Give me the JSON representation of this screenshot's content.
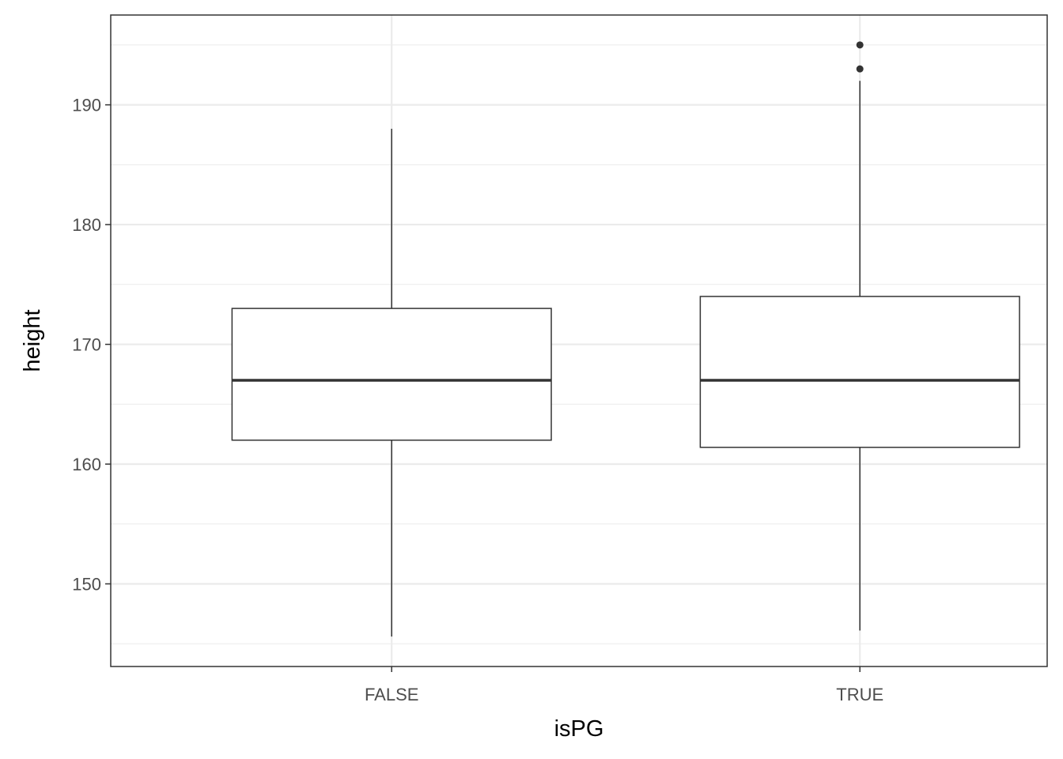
{
  "chart_data": {
    "type": "boxplot",
    "xlabel": "isPG",
    "ylabel": "height",
    "categories": [
      "FALSE",
      "TRUE"
    ],
    "ylim": [
      143.1,
      197.5
    ],
    "yticks": [
      150,
      160,
      170,
      180,
      190
    ],
    "grid": true,
    "boxes": [
      {
        "category": "FALSE",
        "lower_whisker": 145.6,
        "q1": 162,
        "median": 167,
        "q3": 173,
        "upper_whisker": 188,
        "outliers": []
      },
      {
        "category": "TRUE",
        "lower_whisker": 146.1,
        "q1": 161.4,
        "median": 167,
        "q3": 174,
        "upper_whisker": 192,
        "outliers": [
          193,
          195
        ]
      }
    ],
    "colors": {
      "box_line": "#333333",
      "box_fill": "#ffffff",
      "grid": "#ebebeb",
      "panel_border": "#333333"
    }
  }
}
